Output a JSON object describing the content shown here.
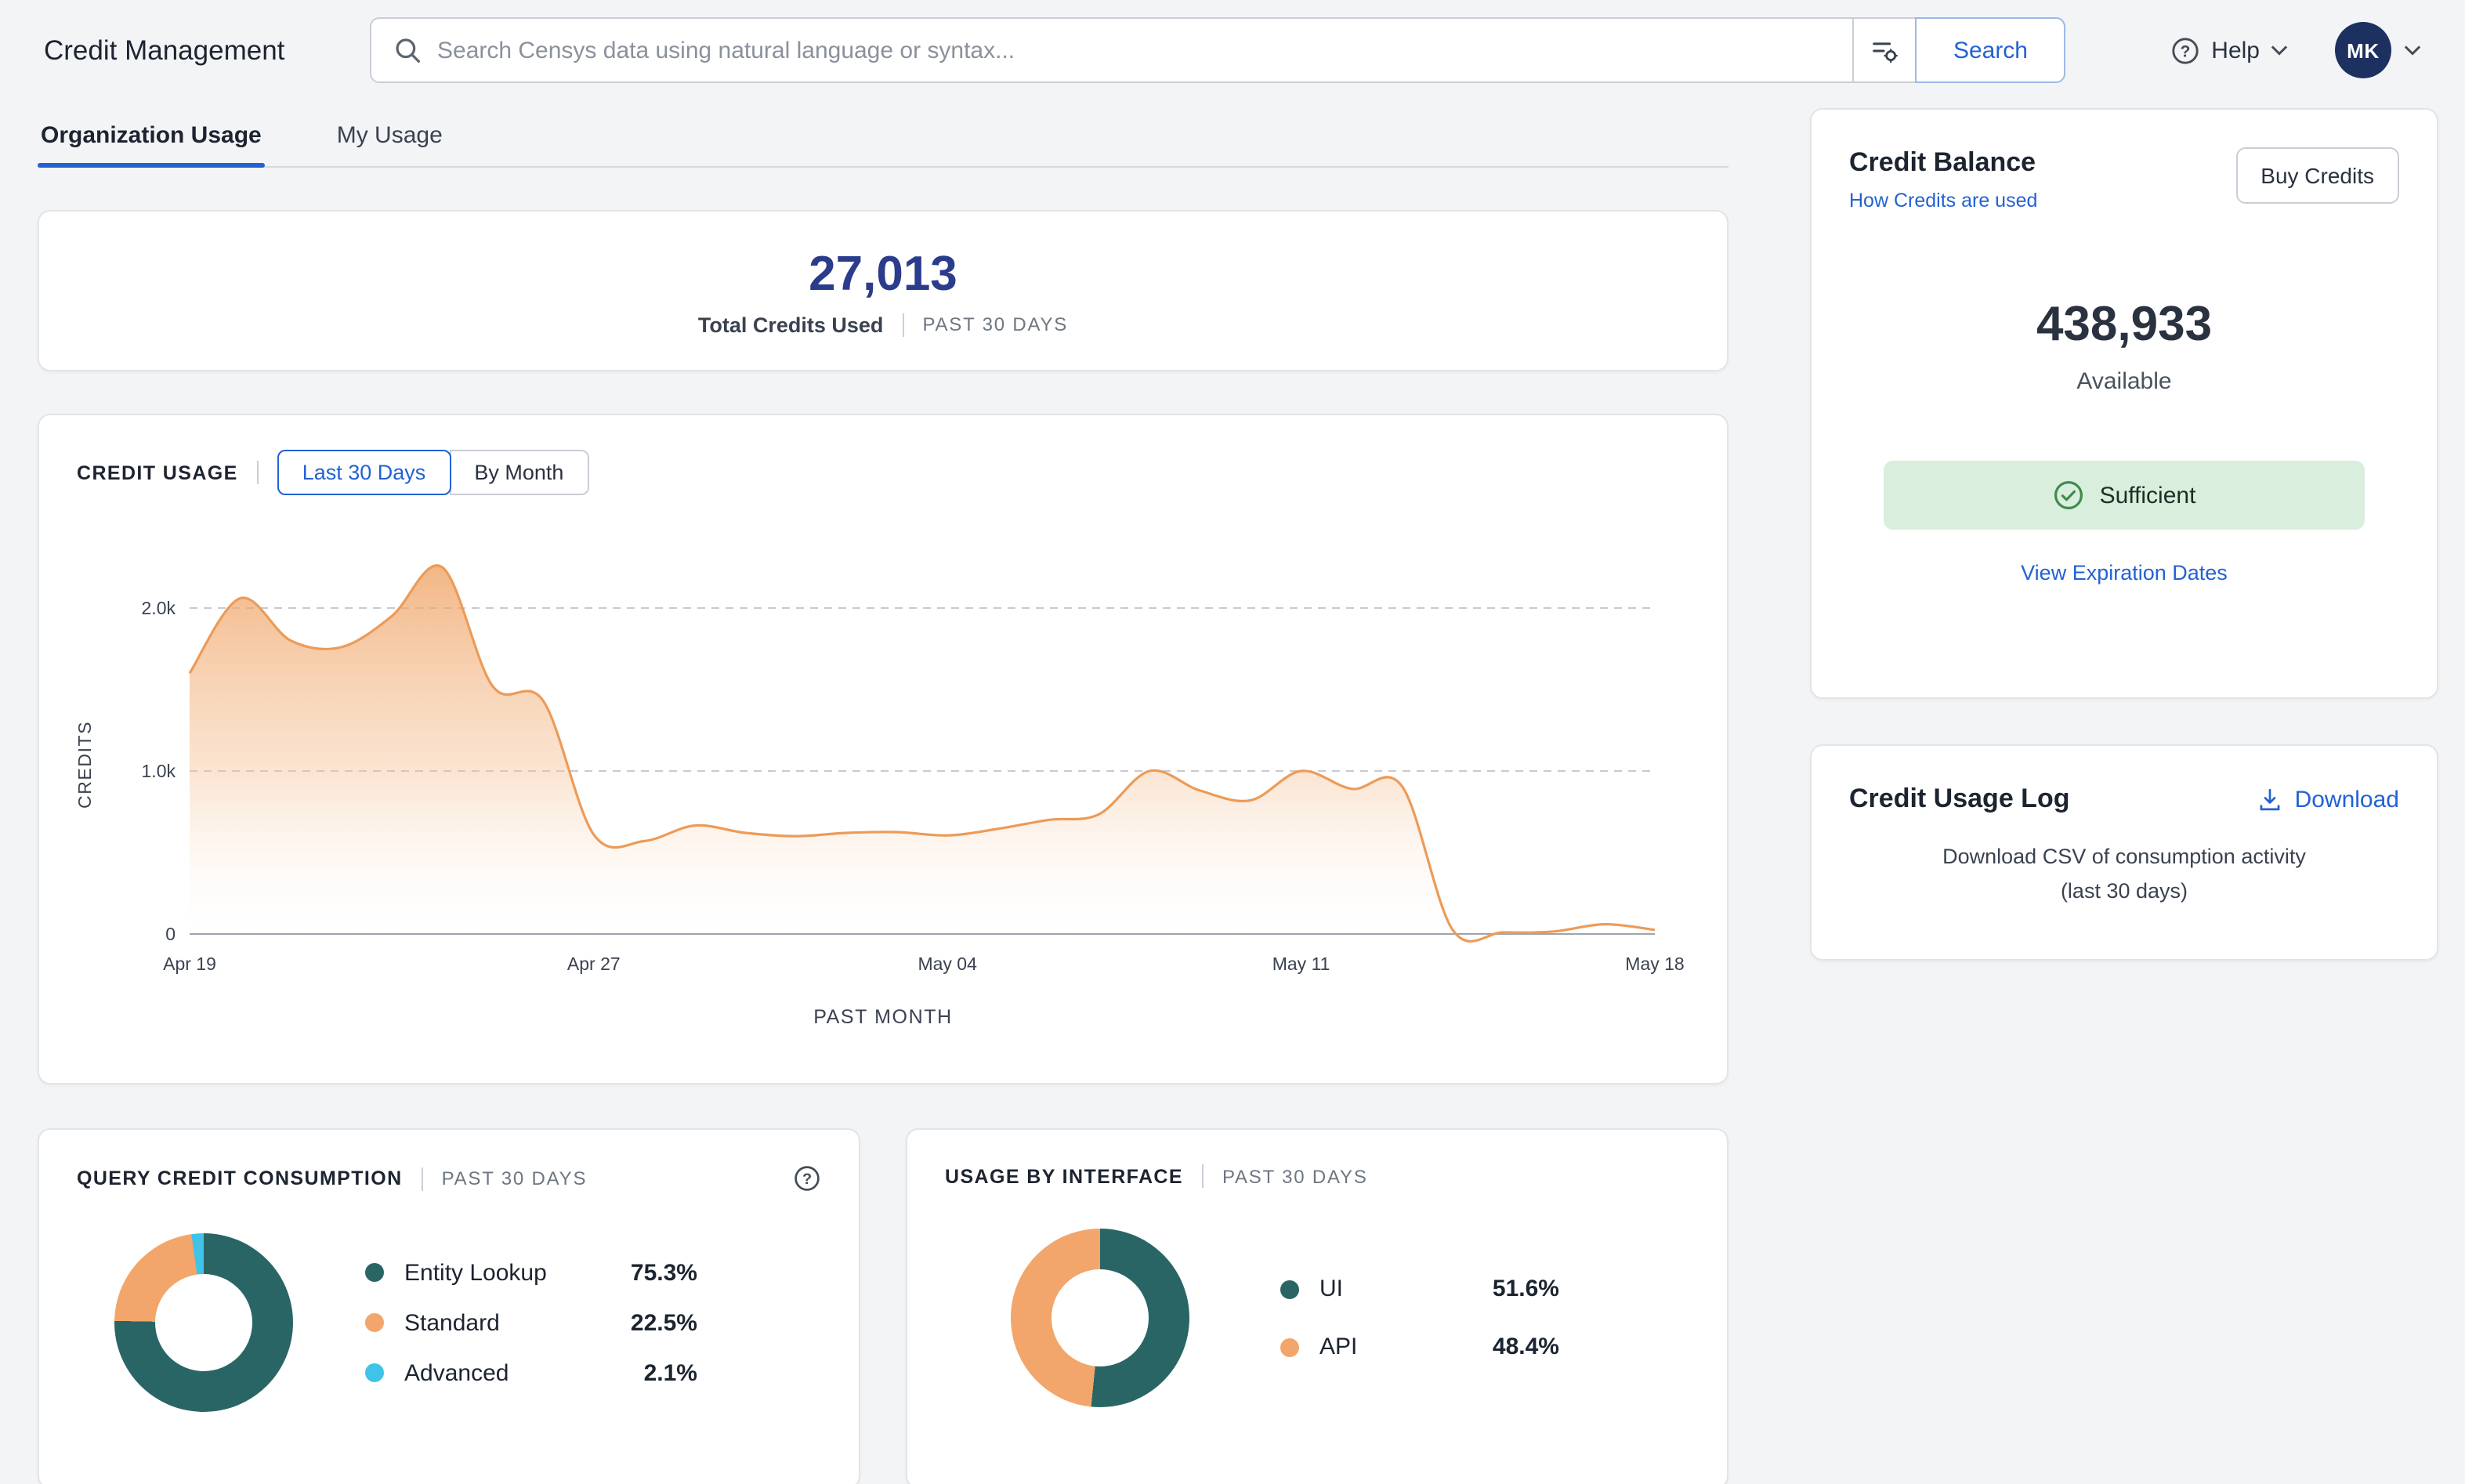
{
  "header": {
    "title": "Credit Management",
    "search": {
      "placeholder": "Search Censys data using natural language or syntax...",
      "button": "Search"
    },
    "help_label": "Help",
    "avatar_initials": "MK"
  },
  "tabs": {
    "organization": "Organization Usage",
    "my_usage": "My Usage"
  },
  "summary": {
    "total": "27,013",
    "label": "Total Credits Used",
    "period": "PAST 30 DAYS"
  },
  "usage_chart": {
    "title": "CREDIT USAGE",
    "toggle_30": "Last 30 Days",
    "toggle_month": "By Month",
    "ylabel": "CREDITS",
    "xlabel": "PAST MONTH"
  },
  "query_consumption": {
    "title": "QUERY CREDIT CONSUMPTION",
    "period": "PAST 30 DAYS",
    "legend": [
      {
        "label": "Entity Lookup",
        "pct_label": "75.3%",
        "color": "#2a6566"
      },
      {
        "label": "Standard",
        "pct_label": "22.5%",
        "color": "#f2a66b"
      },
      {
        "label": "Advanced",
        "pct_label": "2.1%",
        "color": "#3fc3e8"
      }
    ]
  },
  "interface_usage": {
    "title": "USAGE BY INTERFACE",
    "period": "PAST 30 DAYS",
    "legend": [
      {
        "label": "UI",
        "pct_label": "51.6%",
        "color": "#2a6566"
      },
      {
        "label": "API",
        "pct_label": "48.4%",
        "color": "#f2a66b"
      }
    ]
  },
  "balance": {
    "title": "Credit Balance",
    "how_link": "How Credits are used",
    "buy_button": "Buy Credits",
    "amount": "438,933",
    "available_label": "Available",
    "status": "Sufficient",
    "expiration_link": "View Expiration Dates"
  },
  "usage_log": {
    "title": "Credit Usage Log",
    "download_link": "Download",
    "description_line1": "Download CSV of consumption activity",
    "description_line2": "(last 30 days)"
  },
  "chart_data": [
    {
      "type": "area",
      "title": "CREDIT USAGE",
      "xlabel": "PAST MONTH",
      "ylabel": "CREDITS",
      "ylim": [
        0,
        2400
      ],
      "grid": true,
      "line_color": "#ec9b58",
      "x": [
        "Apr 19",
        "Apr 20",
        "Apr 21",
        "Apr 22",
        "Apr 23",
        "Apr 24",
        "Apr 25",
        "Apr 26",
        "Apr 27",
        "Apr 28",
        "Apr 29",
        "Apr 30",
        "May 01",
        "May 02",
        "May 03",
        "May 04",
        "May 05",
        "May 06",
        "May 07",
        "May 08",
        "May 09",
        "May 10",
        "May 11",
        "May 12",
        "May 13",
        "May 14",
        "May 15",
        "May 16",
        "May 17",
        "May 18"
      ],
      "values": [
        1600,
        2060,
        1800,
        1760,
        1950,
        2250,
        1520,
        1430,
        610,
        570,
        665,
        620,
        600,
        620,
        625,
        605,
        645,
        700,
        735,
        1000,
        880,
        820,
        1000,
        890,
        905,
        25,
        10,
        15,
        60,
        25
      ],
      "yticks": [
        {
          "v": 2000,
          "label": "2.0k"
        },
        {
          "v": 1000,
          "label": "1.0k"
        },
        {
          "v": 0,
          "label": "0"
        }
      ],
      "xticks": [
        {
          "i": 0,
          "label": "Apr 19"
        },
        {
          "i": 8,
          "label": "Apr 27"
        },
        {
          "i": 15,
          "label": "May 04"
        },
        {
          "i": 22,
          "label": "May 11"
        },
        {
          "i": 29,
          "label": "May 18"
        }
      ]
    },
    {
      "type": "pie",
      "title": "QUERY CREDIT CONSUMPTION (PAST 30 DAYS)",
      "slices": [
        {
          "name": "Entity Lookup",
          "pct": 75.3,
          "color": "#2a6566"
        },
        {
          "name": "Standard",
          "pct": 22.5,
          "color": "#f2a66b"
        },
        {
          "name": "Advanced",
          "pct": 2.1,
          "color": "#3fc3e8"
        }
      ]
    },
    {
      "type": "pie",
      "title": "USAGE BY INTERFACE (PAST 30 DAYS)",
      "slices": [
        {
          "name": "UI",
          "pct": 51.6,
          "color": "#2a6566"
        },
        {
          "name": "API",
          "pct": 48.4,
          "color": "#f2a66b"
        }
      ]
    }
  ]
}
